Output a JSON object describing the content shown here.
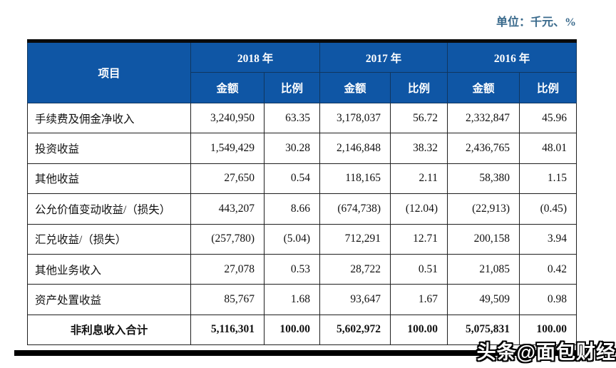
{
  "meta": {
    "unit_label": "单位：千元、%"
  },
  "colors": {
    "header_bg": "#0f56a5",
    "header_text": "#ffffff",
    "unit_text": "#3a6a8c",
    "border": "#1f1f1f",
    "bottom_bar": "#000000"
  },
  "table": {
    "item_header": "项目",
    "year_groups": [
      {
        "year": "2018 年",
        "sub": [
          "金额",
          "比例"
        ]
      },
      {
        "year": "2017 年",
        "sub": [
          "金额",
          "比例"
        ]
      },
      {
        "year": "2016 年",
        "sub": [
          "金额",
          "比例"
        ]
      }
    ],
    "rows": [
      {
        "label": "手续费及佣金净收入",
        "values": [
          "3,240,950",
          "63.35",
          "3,178,037",
          "56.72",
          "2,332,847",
          "45.96"
        ],
        "total": false
      },
      {
        "label": "投资收益",
        "values": [
          "1,549,429",
          "30.28",
          "2,146,848",
          "38.32",
          "2,436,765",
          "48.01"
        ],
        "total": false
      },
      {
        "label": "其他收益",
        "values": [
          "27,650",
          "0.54",
          "118,165",
          "2.11",
          "58,380",
          "1.15"
        ],
        "total": false
      },
      {
        "label": "公允价值变动收益/（损失）",
        "values": [
          "443,207",
          "8.66",
          "(674,738)",
          "(12.04)",
          "(22,913)",
          "(0.45)"
        ],
        "total": false
      },
      {
        "label": "汇兑收益/（损失）",
        "values": [
          "(257,780)",
          "(5.04)",
          "712,291",
          "12.71",
          "200,158",
          "3.94"
        ],
        "total": false
      },
      {
        "label": "其他业务收入",
        "values": [
          "27,078",
          "0.53",
          "28,722",
          "0.51",
          "21,085",
          "0.42"
        ],
        "total": false
      },
      {
        "label": "资产处置收益",
        "values": [
          "85,767",
          "1.68",
          "93,647",
          "1.67",
          "49,509",
          "0.98"
        ],
        "total": false
      },
      {
        "label": "非利息收入合计",
        "values": [
          "5,116,301",
          "100.00",
          "5,602,972",
          "100.00",
          "5,075,831",
          "100.00"
        ],
        "total": true
      }
    ]
  },
  "watermark": {
    "text": "头条@面包财经"
  }
}
